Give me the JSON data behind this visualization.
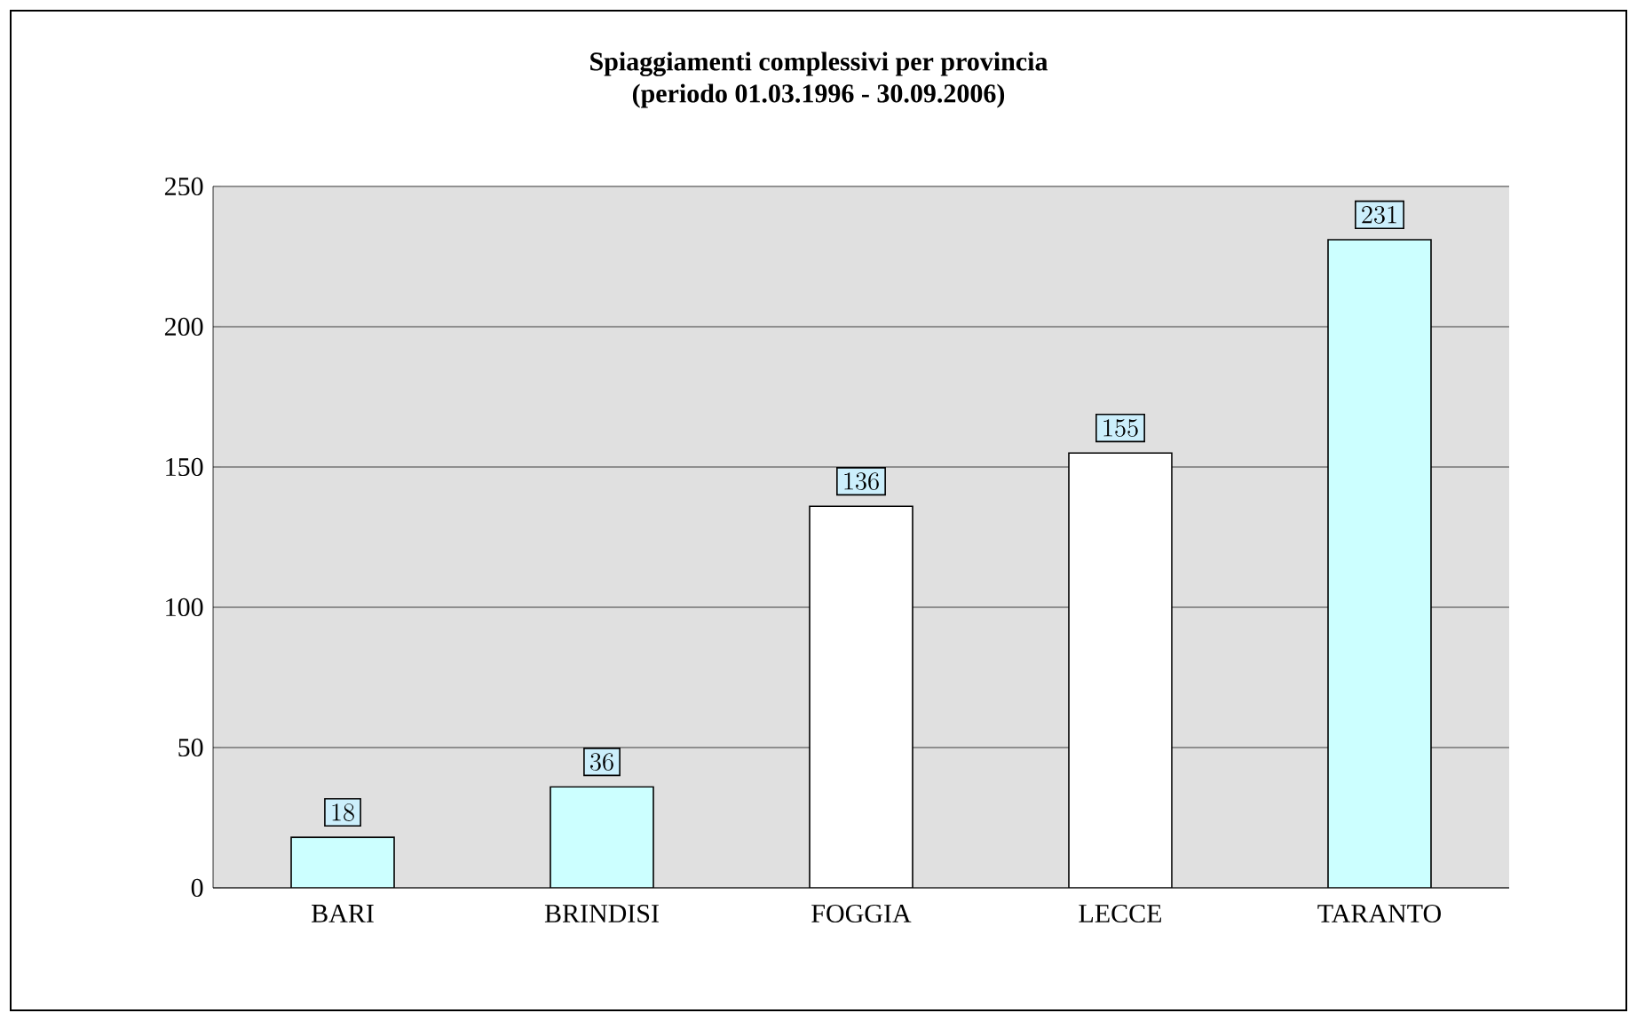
{
  "chart_data": {
    "type": "bar",
    "title": "Spiaggiamenti complessivi per provincia",
    "subtitle": "(periodo 01.03.1996 - 30.09.2006)",
    "categories": [
      "BARI",
      "BRINDISI",
      "FOGGIA",
      "LECCE",
      "TARANTO"
    ],
    "values": [
      18,
      36,
      136,
      155,
      231
    ],
    "colors": [
      "#ccffff",
      "#ccffff",
      "#ffffff",
      "#ffffff",
      "#ccffff"
    ],
    "ylim": [
      0,
      250
    ],
    "yticks": [
      0,
      50,
      100,
      150,
      200,
      250
    ],
    "grid": "y",
    "data_labels": true
  }
}
